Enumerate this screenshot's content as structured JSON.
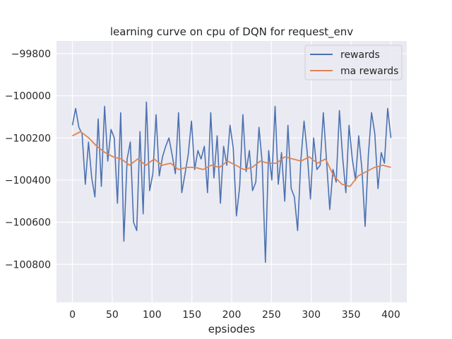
{
  "chart_data": {
    "type": "line",
    "title": "learning curve on cpu of DQN for request_env",
    "xlabel": "epsiodes",
    "ylabel": "",
    "xlim": [
      -20,
      420
    ],
    "ylim": [
      -100980,
      -99740
    ],
    "xticks": [
      0,
      50,
      100,
      150,
      200,
      250,
      300,
      350,
      400
    ],
    "yticks": [
      -100800,
      -100600,
      -100400,
      -100200,
      -100000,
      -99800
    ],
    "xtick_labels": [
      "0",
      "50",
      "100",
      "150",
      "200",
      "250",
      "300",
      "350",
      "400"
    ],
    "ytick_labels": [
      "−100800",
      "−100600",
      "−100400",
      "−100200",
      "−100000",
      "−99800"
    ],
    "grid": true,
    "legend_position": "top-right",
    "colors": {
      "background": "#eaeaf2",
      "grid": "#ffffff",
      "rewards": "#4c72b0",
      "ma_rewards": "#dd8452"
    },
    "series": [
      {
        "name": "rewards",
        "color": "#4c72b0",
        "values": [
          -100140,
          -100060,
          -100150,
          -100180,
          -100420,
          -100220,
          -100390,
          -100480,
          -100110,
          -100430,
          -100050,
          -100310,
          -100160,
          -100200,
          -100510,
          -100080,
          -100690,
          -100300,
          -100220,
          -100600,
          -100640,
          -100170,
          -100560,
          -100030,
          -100450,
          -100370,
          -100090,
          -100380,
          -100290,
          -100240,
          -100200,
          -100280,
          -100370,
          -100080,
          -100460,
          -100370,
          -100280,
          -100120,
          -100350,
          -100260,
          -100300,
          -100240,
          -100460,
          -100080,
          -100390,
          -100190,
          -100510,
          -100240,
          -100330,
          -100140,
          -100250,
          -100570,
          -100430,
          -100090,
          -100360,
          -100260,
          -100450,
          -100410,
          -100150,
          -100320,
          -100790,
          -100260,
          -100400,
          -100050,
          -100420,
          -100270,
          -100500,
          -100140,
          -100440,
          -100480,
          -100640,
          -100310,
          -100120,
          -100270,
          -100490,
          -100200,
          -100350,
          -100330,
          -100080,
          -100310,
          -100540,
          -100350,
          -100410,
          -100070,
          -100290,
          -100460,
          -100140,
          -100300,
          -100400,
          -100190,
          -100350,
          -100620,
          -100280,
          -100080,
          -100180,
          -100440,
          -100270,
          -100320,
          -100060,
          -100200
        ]
      },
      {
        "name": "ma rewards",
        "color": "#dd8452",
        "values": [
          -100190,
          -100170,
          -100200,
          -100240,
          -100270,
          -100290,
          -100300,
          -100330,
          -100300,
          -100330,
          -100300,
          -100330,
          -100320,
          -100350,
          -100340,
          -100340,
          -100350,
          -100330,
          -100340,
          -100310,
          -100330,
          -100350,
          -100340,
          -100310,
          -100320,
          -100320,
          -100290,
          -100300,
          -100310,
          -100290,
          -100320,
          -100300,
          -100380,
          -100420,
          -100430,
          -100380,
          -100360,
          -100340,
          -100330,
          -100340
        ]
      }
    ]
  }
}
